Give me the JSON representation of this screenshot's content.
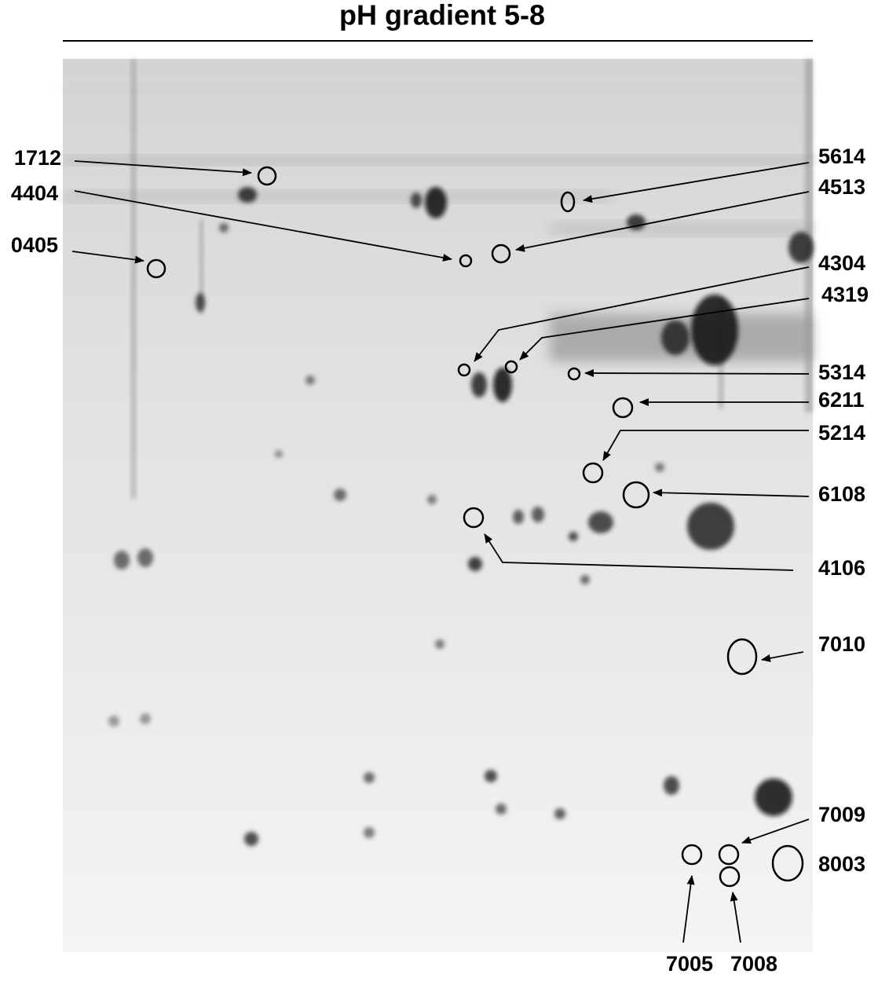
{
  "title": "pH gradient 5-8",
  "spots": [
    "1712",
    "4404",
    "0405",
    "5614",
    "4513",
    "4304",
    "4319",
    "5314",
    "6211",
    "5214",
    "6108",
    "4106",
    "7010",
    "7009",
    "8003",
    "7005",
    "7008"
  ]
}
